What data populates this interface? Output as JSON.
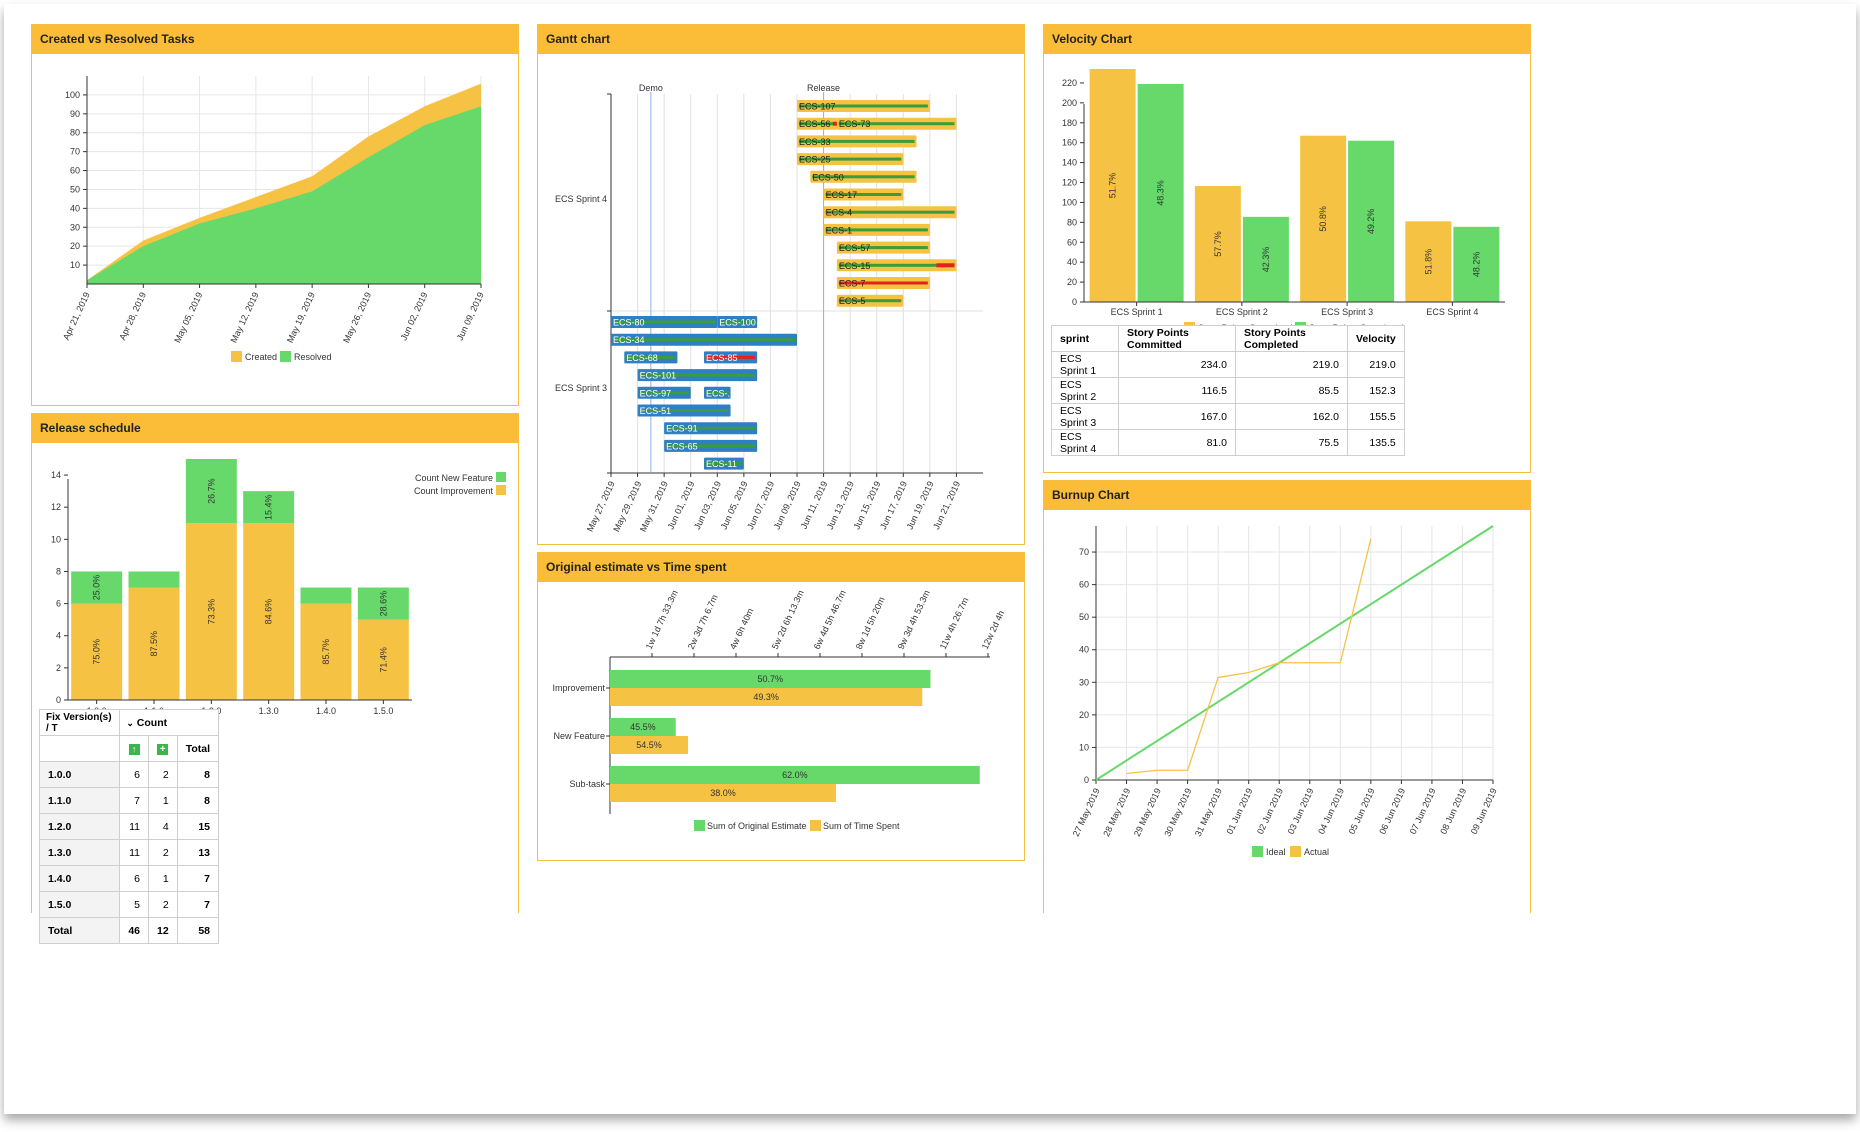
{
  "colors": {
    "yellow": "#f6c244",
    "green": "#66d96a",
    "red": "#e0231c",
    "blue": "#2e7fc4",
    "header": "#fbbd38"
  },
  "panels": {
    "created_resolved": {
      "title": "Created vs Resolved Tasks",
      "legend": [
        "Created",
        "Resolved"
      ]
    },
    "release_schedule": {
      "title": "Release schedule",
      "legend": [
        "Count New Feature",
        "Count Improvement"
      ],
      "table": {
        "col1": "Fix Version(s) / T",
        "col2": "Count",
        "total_header": "Total",
        "rows": [
          {
            "version": "1.0.0",
            "a": "6",
            "b": "2",
            "total": "8"
          },
          {
            "version": "1.1.0",
            "a": "7",
            "b": "1",
            "total": "8"
          },
          {
            "version": "1.2.0",
            "a": "11",
            "b": "4",
            "total": "15"
          },
          {
            "version": "1.3.0",
            "a": "11",
            "b": "2",
            "total": "13"
          },
          {
            "version": "1.4.0",
            "a": "6",
            "b": "1",
            "total": "7"
          },
          {
            "version": "1.5.0",
            "a": "5",
            "b": "2",
            "total": "7"
          }
        ],
        "footer": {
          "version": "Total",
          "a": "46",
          "b": "12",
          "total": "58"
        }
      }
    },
    "gantt": {
      "title": "Gantt chart",
      "milestones": [
        "Demo",
        "Release"
      ]
    },
    "estimate": {
      "title": "Original estimate vs Time spent",
      "legend": [
        "Sum of Original Estimate",
        "Sum of Time Spent"
      ]
    },
    "velocity": {
      "title": "Velocity Chart",
      "legend": [
        "Story Points Committed",
        "Story Points Completed"
      ],
      "table": {
        "headers": [
          "sprint",
          "Story Points Committed",
          "Story Points Completed",
          "Velocity"
        ],
        "rows": [
          [
            "ECS Sprint 1",
            "234.0",
            "219.0",
            "219.0"
          ],
          [
            "ECS Sprint 2",
            "116.5",
            "85.5",
            "152.3"
          ],
          [
            "ECS Sprint 3",
            "167.0",
            "162.0",
            "155.5"
          ],
          [
            "ECS Sprint 4",
            "81.0",
            "75.5",
            "135.5"
          ]
        ]
      }
    },
    "burnup": {
      "title": "Burnup Chart",
      "legend": [
        "Ideal",
        "Actual"
      ]
    }
  },
  "chart_data": [
    {
      "id": "created_resolved",
      "type": "area",
      "x": [
        "Apr 21, 2019",
        "Apr 28, 2019",
        "May 05, 2019",
        "May 12, 2019",
        "May 19, 2019",
        "May 26, 2019",
        "Jun 02, 2019",
        "Jun 09, 2019"
      ],
      "series": [
        {
          "name": "Created",
          "values": [
            2,
            23,
            35,
            46,
            57,
            78,
            94,
            106
          ]
        },
        {
          "name": "Resolved",
          "values": [
            2,
            20,
            32,
            40,
            49,
            67,
            84,
            94
          ]
        }
      ],
      "ylim": [
        0,
        100
      ],
      "yticks": [
        10,
        20,
        30,
        40,
        50,
        60,
        70,
        80,
        90,
        100
      ],
      "legend_position": "bottom"
    },
    {
      "id": "release_schedule",
      "type": "bar",
      "stacked": true,
      "categories": [
        "1.0.0",
        "1.1.0",
        "1.2.0",
        "1.3.0",
        "1.4.0",
        "1.5.0"
      ],
      "series": [
        {
          "name": "Count Improvement",
          "values": [
            6,
            7,
            11,
            11,
            6,
            5
          ],
          "labels": [
            "75.0%",
            "87.5%",
            "73.3%",
            "84.6%",
            "85.7%",
            "71.4%"
          ]
        },
        {
          "name": "Count New Feature",
          "values": [
            2,
            1,
            4,
            2,
            1,
            2
          ],
          "labels": [
            "25.0%",
            "",
            "26.7%",
            "15.4%",
            "",
            "28.6%"
          ]
        }
      ],
      "ylim": [
        0,
        15
      ],
      "yticks": [
        0,
        2,
        4,
        6,
        8,
        10,
        12,
        14
      ],
      "legend_position": "top-right"
    },
    {
      "id": "gantt",
      "type": "gantt",
      "x_ticks": [
        "May 27, 2019",
        "May 29, 2019",
        "May 31, 2019",
        "Jun 01, 2019",
        "Jun 03, 2019",
        "Jun 05, 2019",
        "Jun 07, 2019",
        "Jun 09, 2019",
        "Jun 11, 2019",
        "Jun 13, 2019",
        "Jun 15, 2019",
        "Jun 17, 2019",
        "Jun 19, 2019",
        "Jun 21, 2019"
      ],
      "groups": [
        "ECS Sprint 4",
        "ECS Sprint 3"
      ],
      "milestones": [
        {
          "name": "Demo",
          "x": 1.5
        },
        {
          "name": "Release",
          "x": 8
        }
      ],
      "tasks": [
        {
          "id": "ECS-107",
          "group": "ECS Sprint 4",
          "row": 0,
          "start": 7,
          "end": 12,
          "style": "yellow"
        },
        {
          "id": "ECS-56",
          "group": "ECS Sprint 4",
          "row": 1,
          "start": 7,
          "end": 8.5,
          "style": "yellow",
          "flag": true
        },
        {
          "id": "ECS-73",
          "group": "ECS Sprint 4",
          "row": 1,
          "start": 8.5,
          "end": 13,
          "style": "yellow"
        },
        {
          "id": "ECS-33",
          "group": "ECS Sprint 4",
          "row": 2,
          "start": 7,
          "end": 11.5,
          "style": "yellow"
        },
        {
          "id": "ECS-25",
          "group": "ECS Sprint 4",
          "row": 3,
          "start": 7,
          "end": 11,
          "style": "yellow"
        },
        {
          "id": "ECS-50",
          "group": "ECS Sprint 4",
          "row": 4,
          "start": 7.5,
          "end": 11.5,
          "style": "yellow"
        },
        {
          "id": "ECS-17",
          "group": "ECS Sprint 4",
          "row": 5,
          "start": 8,
          "end": 11,
          "style": "yellow"
        },
        {
          "id": "ECS-4",
          "group": "ECS Sprint 4",
          "row": 6,
          "start": 8,
          "end": 13,
          "style": "yellow"
        },
        {
          "id": "ECS-1",
          "group": "ECS Sprint 4",
          "row": 7,
          "start": 8,
          "end": 12,
          "style": "yellow"
        },
        {
          "id": "ECS-57",
          "group": "ECS Sprint 4",
          "row": 8,
          "start": 8.5,
          "end": 12,
          "style": "yellow"
        },
        {
          "id": "ECS-15",
          "group": "ECS Sprint 4",
          "row": 9,
          "start": 8.5,
          "end": 13,
          "style": "yellow",
          "red_tail": true
        },
        {
          "id": "ECS-7",
          "group": "ECS Sprint 4",
          "row": 10,
          "start": 8.5,
          "end": 12,
          "style": "yellow",
          "red": true
        },
        {
          "id": "ECS-5",
          "group": "ECS Sprint 4",
          "row": 11,
          "start": 8.5,
          "end": 11,
          "style": "yellow"
        },
        {
          "id": "ECS-80",
          "group": "ECS Sprint 3",
          "row": 0,
          "start": 0,
          "end": 4,
          "style": "blue"
        },
        {
          "id": "ECS-100",
          "group": "ECS Sprint 3",
          "row": 0,
          "start": 4,
          "end": 5.5,
          "style": "blue"
        },
        {
          "id": "ECS-34",
          "group": "ECS Sprint 3",
          "row": 1,
          "start": 0,
          "end": 7,
          "style": "blue"
        },
        {
          "id": "ECS-68",
          "group": "ECS Sprint 3",
          "row": 2,
          "start": 0.5,
          "end": 2.5,
          "style": "blue"
        },
        {
          "id": "ECS-85",
          "group": "ECS Sprint 3",
          "row": 2,
          "start": 3.5,
          "end": 5.5,
          "style": "blue",
          "red": true
        },
        {
          "id": "ECS-101",
          "group": "ECS Sprint 3",
          "row": 3,
          "start": 1,
          "end": 5.5,
          "style": "blue"
        },
        {
          "id": "ECS-97",
          "group": "ECS Sprint 3",
          "row": 4,
          "start": 1,
          "end": 3,
          "style": "blue"
        },
        {
          "id": "ECS-...",
          "group": "ECS Sprint 3",
          "row": 4,
          "start": 3.5,
          "end": 4.5,
          "style": "blue"
        },
        {
          "id": "ECS-51",
          "group": "ECS Sprint 3",
          "row": 5,
          "start": 1,
          "end": 4.5,
          "style": "blue"
        },
        {
          "id": "ECS-91",
          "group": "ECS Sprint 3",
          "row": 6,
          "start": 2,
          "end": 5.5,
          "style": "blue"
        },
        {
          "id": "ECS-65",
          "group": "ECS Sprint 3",
          "row": 7,
          "start": 2,
          "end": 5.5,
          "style": "blue"
        },
        {
          "id": "ECS-11",
          "group": "ECS Sprint 3",
          "row": 8,
          "start": 3.5,
          "end": 5,
          "style": "blue"
        }
      ]
    },
    {
      "id": "estimate",
      "type": "bar",
      "orientation": "horizontal",
      "categories": [
        "Improvement",
        "New Feature",
        "Sub-task"
      ],
      "x_ticks": [
        "1w 1d 7h 33.3m",
        "2w 3d 7h 6.7m",
        "4w 6h 40m",
        "5w 2d 6h 13.3m",
        "6w 4d 5h 46.7m",
        "8w 1d 5h 20m",
        "9w 3d 4h 53.3m",
        "11w 4h 26.7m",
        "12w 2d 4h"
      ],
      "series": [
        {
          "name": "Sum of Original Estimate",
          "values": [
            7.8,
            1.6,
            9.0
          ],
          "labels": [
            "50.7%",
            "45.5%",
            "62.0%"
          ]
        },
        {
          "name": "Sum of Time Spent",
          "values": [
            7.6,
            1.9,
            5.5
          ],
          "labels": [
            "49.3%",
            "54.5%",
            "38.0%"
          ]
        }
      ],
      "xlim": [
        0,
        9.2
      ],
      "legend_position": "bottom"
    },
    {
      "id": "velocity",
      "type": "bar",
      "categories": [
        "ECS Sprint 1",
        "ECS Sprint 2",
        "ECS Sprint 3",
        "ECS Sprint 4"
      ],
      "series": [
        {
          "name": "Story Points Committed",
          "values": [
            234.0,
            116.5,
            167.0,
            81.0
          ],
          "labels": [
            "51.7%",
            "57.7%",
            "50.8%",
            "51.8%"
          ]
        },
        {
          "name": "Story Points Completed",
          "values": [
            219.0,
            85.5,
            162.0,
            75.5
          ],
          "labels": [
            "48.3%",
            "42.3%",
            "49.2%",
            "48.2%"
          ]
        }
      ],
      "ylim": [
        0,
        225
      ],
      "yticks": [
        0,
        20,
        40,
        60,
        80,
        100,
        120,
        140,
        160,
        180,
        200,
        220
      ],
      "legend_position": "bottom"
    },
    {
      "id": "burnup",
      "type": "line",
      "x": [
        "27 May 2019",
        "28 May 2019",
        "29 May 2019",
        "30 May 2019",
        "31 May 2019",
        "01 Jun 2019",
        "02 Jun 2019",
        "03 Jun 2019",
        "04 Jun 2019",
        "05 Jun 2019",
        "06 Jun 2019",
        "07 Jun 2019",
        "08 Jun 2019",
        "09 Jun 2019"
      ],
      "series": [
        {
          "name": "Ideal",
          "points": [
            [
              0,
              0
            ],
            [
              13,
              78
            ]
          ]
        },
        {
          "name": "Actual",
          "points": [
            [
              1,
              2
            ],
            [
              2,
              3
            ],
            [
              3,
              3
            ],
            [
              4,
              31.5
            ],
            [
              5,
              33
            ],
            [
              6,
              36
            ],
            [
              7,
              36
            ],
            [
              8,
              36
            ],
            [
              9,
              74
            ]
          ]
        }
      ],
      "ylim": [
        0,
        78
      ],
      "yticks": [
        0,
        10,
        20,
        30,
        40,
        50,
        60,
        70
      ],
      "legend_position": "bottom"
    }
  ]
}
